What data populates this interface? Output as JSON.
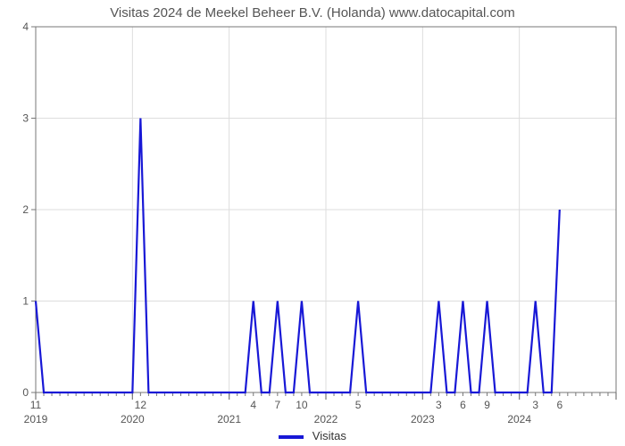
{
  "chart": {
    "type": "line",
    "title": "Visitas 2024 de Meekel Beheer B.V. (Holanda) www.datocapital.com",
    "title_fontsize": 15,
    "title_color": "#555555",
    "background_color": "#ffffff",
    "plot_area_border_color": "#777777",
    "grid_color": "#dddddd",
    "xlim": [
      0,
      72
    ],
    "ylim": [
      0,
      4
    ],
    "ytick_step": 1,
    "y_ticks": [
      0,
      1,
      2,
      3,
      4
    ],
    "x_year_ticks": [
      {
        "pos": 0,
        "label": "2019"
      },
      {
        "pos": 12,
        "label": "2020"
      },
      {
        "pos": 24,
        "label": "2021"
      },
      {
        "pos": 36,
        "label": "2022"
      },
      {
        "pos": 48,
        "label": "2023"
      },
      {
        "pos": 60,
        "label": "2024"
      },
      {
        "pos": 72,
        "label": ""
      }
    ],
    "x_minor_tick_step": 1,
    "series": {
      "name": "Visitas",
      "color": "#1818d6",
      "line_width": 2.2,
      "points": [
        {
          "x": 0,
          "y": 1
        },
        {
          "x": 1,
          "y": 0
        },
        {
          "x": 2,
          "y": 0
        },
        {
          "x": 3,
          "y": 0
        },
        {
          "x": 4,
          "y": 0
        },
        {
          "x": 5,
          "y": 0
        },
        {
          "x": 6,
          "y": 0
        },
        {
          "x": 7,
          "y": 0
        },
        {
          "x": 8,
          "y": 0
        },
        {
          "x": 9,
          "y": 0
        },
        {
          "x": 10,
          "y": 0
        },
        {
          "x": 11,
          "y": 0
        },
        {
          "x": 12,
          "y": 0
        },
        {
          "x": 13,
          "y": 3
        },
        {
          "x": 14,
          "y": 0
        },
        {
          "x": 15,
          "y": 0
        },
        {
          "x": 16,
          "y": 0
        },
        {
          "x": 17,
          "y": 0
        },
        {
          "x": 18,
          "y": 0
        },
        {
          "x": 19,
          "y": 0
        },
        {
          "x": 20,
          "y": 0
        },
        {
          "x": 21,
          "y": 0
        },
        {
          "x": 22,
          "y": 0
        },
        {
          "x": 23,
          "y": 0
        },
        {
          "x": 24,
          "y": 0
        },
        {
          "x": 25,
          "y": 0
        },
        {
          "x": 26,
          "y": 0
        },
        {
          "x": 27,
          "y": 1
        },
        {
          "x": 28,
          "y": 0
        },
        {
          "x": 29,
          "y": 0
        },
        {
          "x": 30,
          "y": 1
        },
        {
          "x": 31,
          "y": 0
        },
        {
          "x": 32,
          "y": 0
        },
        {
          "x": 33,
          "y": 1
        },
        {
          "x": 34,
          "y": 0
        },
        {
          "x": 35,
          "y": 0
        },
        {
          "x": 36,
          "y": 0
        },
        {
          "x": 37,
          "y": 0
        },
        {
          "x": 38,
          "y": 0
        },
        {
          "x": 39,
          "y": 0
        },
        {
          "x": 40,
          "y": 1
        },
        {
          "x": 41,
          "y": 0
        },
        {
          "x": 42,
          "y": 0
        },
        {
          "x": 43,
          "y": 0
        },
        {
          "x": 44,
          "y": 0
        },
        {
          "x": 45,
          "y": 0
        },
        {
          "x": 46,
          "y": 0
        },
        {
          "x": 47,
          "y": 0
        },
        {
          "x": 48,
          "y": 0
        },
        {
          "x": 49,
          "y": 0
        },
        {
          "x": 50,
          "y": 1
        },
        {
          "x": 51,
          "y": 0
        },
        {
          "x": 52,
          "y": 0
        },
        {
          "x": 53,
          "y": 1
        },
        {
          "x": 54,
          "y": 0
        },
        {
          "x": 55,
          "y": 0
        },
        {
          "x": 56,
          "y": 1
        },
        {
          "x": 57,
          "y": 0
        },
        {
          "x": 58,
          "y": 0
        },
        {
          "x": 59,
          "y": 0
        },
        {
          "x": 60,
          "y": 0
        },
        {
          "x": 61,
          "y": 0
        },
        {
          "x": 62,
          "y": 1
        },
        {
          "x": 63,
          "y": 0
        },
        {
          "x": 64,
          "y": 0
        },
        {
          "x": 65,
          "y": 2
        }
      ],
      "data_labels": [
        {
          "x": 0,
          "text": "11"
        },
        {
          "x": 13,
          "text": "12"
        },
        {
          "x": 27,
          "text": "4"
        },
        {
          "x": 30,
          "text": "7"
        },
        {
          "x": 33,
          "text": "10"
        },
        {
          "x": 40,
          "text": "5"
        },
        {
          "x": 50,
          "text": "3"
        },
        {
          "x": 53,
          "text": "6"
        },
        {
          "x": 56,
          "text": "9"
        },
        {
          "x": 62,
          "text": "3"
        },
        {
          "x": 65,
          "text": "6"
        }
      ]
    },
    "legend": {
      "label": "Visitas",
      "swatch_color": "#1818d6"
    },
    "axis_label_fontsize": 12,
    "axis_label_color": "#555555"
  }
}
